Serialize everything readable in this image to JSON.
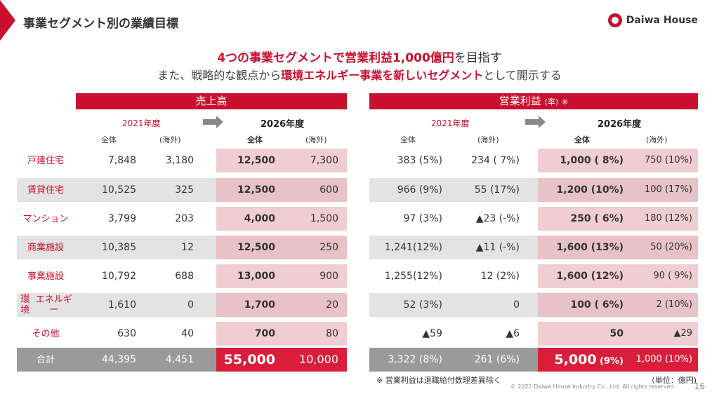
{
  "header": {
    "title": "事業セグメント別の業績目標",
    "logo_text": "Daiwa House",
    "accent": "#c8102e"
  },
  "headline": {
    "line1_red": "4つの事業セグメントで営業利益1,000億円",
    "line1_tail": "を目指す",
    "line2_pre": "また、戦略的な観点から",
    "line2_red": "環境エネルギー事業を新しいセグメント",
    "line2_tail": "として開示する"
  },
  "sales": {
    "band_label": "売上高",
    "year_from": "2021年度",
    "year_to": "2026年度",
    "col_total": "全体",
    "col_overseas": "(海外)"
  },
  "profit": {
    "band_label": "営業利益",
    "band_rate": "(率)",
    "band_note": "※",
    "year_from": "2021年度",
    "year_to": "2026年度",
    "col_total": "全体",
    "col_overseas": "(海外)"
  },
  "rows": [
    {
      "segment": "戸建住宅",
      "s21": "7,848",
      "s21o": "3,180",
      "s26": "12,500",
      "s26o": "7,300",
      "p21": "383 (5%)",
      "p21o": "234 ( 7%)",
      "p26": "1,000 ( 8%)",
      "p26o": "750 (10%)"
    },
    {
      "segment": "賃貸住宅",
      "s21": "10,525",
      "s21o": "325",
      "s26": "12,500",
      "s26o": "600",
      "p21": "966 (9%)",
      "p21o": "55 (17%)",
      "p26": "1,200 (10%)",
      "p26o": "100 (17%)"
    },
    {
      "segment": "マンション",
      "s21": "3,799",
      "s21o": "203",
      "s26": "4,000",
      "s26o": "1,500",
      "p21": "97 (3%)",
      "p21o": "▲23 (-%)",
      "p26": "250 ( 6%)",
      "p26o": "180 (12%)"
    },
    {
      "segment": "商業施設",
      "s21": "10,385",
      "s21o": "12",
      "s26": "12,500",
      "s26o": "250",
      "p21": "1,241(12%)",
      "p21o": "▲11 (-%)",
      "p26": "1,600 (13%)",
      "p26o": "50 (20%)"
    },
    {
      "segment": "事業施設",
      "s21": "10,792",
      "s21o": "688",
      "s26": "13,000",
      "s26o": "900",
      "p21": "1,255(12%)",
      "p21o": "12 (2%)",
      "p26": "1,600 (12%)",
      "p26o": "90 ( 9%)"
    },
    {
      "segment_l1": "環境",
      "segment_l2": "エネルギー",
      "s21": "1,610",
      "s21o": "0",
      "s26": "1,700",
      "s26o": "20",
      "p21": "52 (3%)",
      "p21o": "0",
      "p26": "100 ( 6%)",
      "p26o": "2 (10%)"
    },
    {
      "segment": "その他",
      "s21": "630",
      "s21o": "40",
      "s26": "700",
      "s26o": "80",
      "p21": "▲59",
      "p21o": "▲6",
      "p26": "50",
      "p26o": "▲29"
    }
  ],
  "total": {
    "segment": "合計",
    "s21": "44,395",
    "s21o": "4,451",
    "s26": "55,000",
    "s26o": "10,000",
    "p21": "3,322 (8%)",
    "p21o": "261 (6%)",
    "p26_main": "5,000",
    "p26_rate": "(9%)",
    "p26o": "1,000 (10%)"
  },
  "footer": {
    "footnote": "※ 営業利益は退職給付数理差異除く",
    "unit": "(単位：億円)",
    "copyright": "© 2022 Daiwa House Industry Co., Ltd. All rights reserved.",
    "page": "16"
  }
}
